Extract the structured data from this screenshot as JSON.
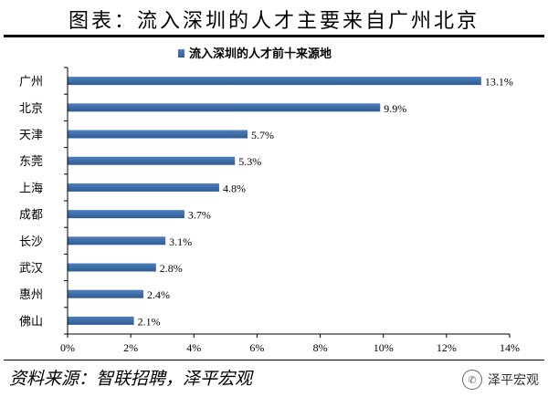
{
  "title": "图表：流入深圳的人才主要来自广州北京",
  "source": "资料来源：智联招聘，泽平宏观",
  "brand": "泽平宏观",
  "brand_icon": "wechat-icon",
  "colors": {
    "bar": "#4f81bd",
    "bar_dark": "#2e5b93",
    "axis": "#000000"
  },
  "chart_data": {
    "type": "bar",
    "orientation": "horizontal",
    "title": "流入深圳的人才前十来源地",
    "legend_position": "top",
    "categories": [
      "广州",
      "北京",
      "天津",
      "东莞",
      "上海",
      "成都",
      "长沙",
      "武汉",
      "惠州",
      "佛山"
    ],
    "series": [
      {
        "name": "流入深圳的人才前十来源地",
        "values": [
          13.1,
          9.9,
          5.7,
          5.3,
          4.8,
          3.7,
          3.1,
          2.8,
          2.4,
          2.1
        ],
        "labels": [
          "13.1%",
          "9.9%",
          "5.7%",
          "5.3%",
          "4.8%",
          "3.7%",
          "3.1%",
          "2.8%",
          "2.4%",
          "2.1%"
        ]
      }
    ],
    "xlim": [
      0,
      14
    ],
    "xticks": [
      0,
      2,
      4,
      6,
      8,
      10,
      12,
      14
    ],
    "xtick_labels": [
      "0%",
      "2%",
      "4%",
      "6%",
      "8%",
      "10%",
      "12%",
      "14%"
    ],
    "grid": false
  }
}
